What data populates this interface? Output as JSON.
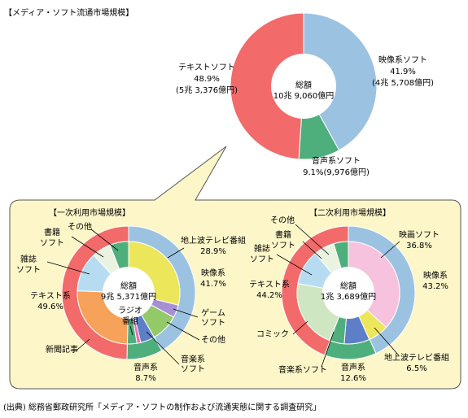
{
  "chart_data": [
    {
      "type": "pie",
      "title": "【メディア・ソフト流通市場規模】",
      "center_label": [
        "総額",
        "10兆 9,060億円"
      ],
      "slices": [
        {
          "name": "映像系ソフト",
          "value": 41.9,
          "pct": "41.9%",
          "amount": "(4兆 5,708億円)",
          "color": "#9cc2e1"
        },
        {
          "name": "音声系ソフト",
          "value": 9.1,
          "pct": "9.1%",
          "amount": "(9,976億円)",
          "color": "#4faf7c"
        },
        {
          "name": "テキストソフト",
          "value": 48.9,
          "pct": "48.9%",
          "amount": "(5兆 3,376億円)",
          "color": "#f26a6a"
        }
      ],
      "labels": {
        "video": [
          "映像系ソフト",
          "41.9%",
          "(4兆 5,708億円)"
        ],
        "audio": [
          "音声系ソフト",
          "9.1%(9,976億円)"
        ],
        "text": [
          "テキストソフト",
          "48.9%",
          "(5兆 3,376億円)"
        ]
      }
    },
    {
      "type": "pie",
      "title": "【一次利用市場規模】",
      "center_label": [
        "総額",
        "9兆 5,371億円"
      ],
      "outer": [
        {
          "name": "映像系",
          "value": 41.7,
          "color": "#9cc2e1"
        },
        {
          "name": "音声系",
          "value": 8.7,
          "color": "#4faf7c"
        },
        {
          "name": "テキスト系",
          "value": 49.6,
          "color": "#f26a6a"
        }
      ],
      "inner": [
        {
          "name": "地上波テレビ番組",
          "value": 28.9,
          "color": "#ece65a"
        },
        {
          "name": "ゲームソフト",
          "value": 4.0,
          "color": "#a78fd4"
        },
        {
          "name": "その他",
          "value": 8.8,
          "color": "#94c96a"
        },
        {
          "name": "音楽系ソフト",
          "value": 4.5,
          "color": "#5d7fc7"
        },
        {
          "name": "ラジオ番組",
          "value": 1.2,
          "color": "#f06aa8"
        },
        {
          "name": "その他",
          "value": 3.0,
          "color": "#4faf7c"
        },
        {
          "name": "新聞記事",
          "value": 25.2,
          "color": "#f6a25a"
        },
        {
          "name": "雑誌ソフト",
          "value": 12.5,
          "color": "#b7dcf2"
        },
        {
          "name": "書籍ソフト",
          "value": 6.0,
          "color": "#e9f3e0"
        },
        {
          "name": "その他",
          "value": 5.9,
          "color": "#4faf7c"
        }
      ],
      "labels": {
        "tv": [
          "地上波テレビ番組",
          "28.9%"
        ],
        "video": [
          "映像系",
          "41.7%"
        ],
        "game": [
          "ゲーム",
          "ソフト"
        ],
        "other_right": "その他",
        "music": [
          "音楽系",
          "ソフト"
        ],
        "audio": [
          "音声系",
          "8.7%"
        ],
        "radio": [
          "ラジオ",
          "番組"
        ],
        "text": [
          "テキスト系",
          "49.6%"
        ],
        "news": "新聞記事",
        "magazine": [
          "雑誌",
          "ソフト"
        ],
        "books": [
          "書籍",
          "ソフト"
        ],
        "other_top": "その他"
      }
    },
    {
      "type": "pie",
      "title": "【二次利用市場規模】",
      "center_label": [
        "総額",
        "1兆 3,689億円"
      ],
      "outer": [
        {
          "name": "映像系",
          "value": 43.2,
          "color": "#9cc2e1"
        },
        {
          "name": "音声系",
          "value": 12.6,
          "color": "#4faf7c"
        },
        {
          "name": "テキスト系",
          "value": 44.2,
          "color": "#f26a6a"
        }
      ],
      "inner": [
        {
          "name": "映画ソフト",
          "value": 36.8,
          "color": "#f7c2de"
        },
        {
          "name": "地上波テレビ番組",
          "value": 6.5,
          "color": "#ece65a"
        },
        {
          "name": "音楽系ソフト",
          "value": 8.0,
          "color": "#5d7fc7"
        },
        {
          "name": "その他",
          "value": 4.6,
          "color": "#4faf7c"
        },
        {
          "name": "コミック",
          "value": 22.0,
          "color": "#cfe6c2"
        },
        {
          "name": "雑誌ソフト",
          "value": 11.0,
          "color": "#b7dcf2"
        },
        {
          "name": "書籍ソフト",
          "value": 6.5,
          "color": "#e9f3e0"
        },
        {
          "name": "その他",
          "value": 4.6,
          "color": "#4faf7c"
        }
      ],
      "labels": {
        "movie": [
          "映画ソフト",
          "36.8%"
        ],
        "video": [
          "映像系",
          "43.2%"
        ],
        "tv": [
          "地上波テレビ番組",
          "6.5%"
        ],
        "audio": [
          "音声系",
          "12.6%"
        ],
        "music": "音楽系ソフト",
        "comic": "コミック",
        "text": [
          "テキスト系",
          "44.2%"
        ],
        "magazine": [
          "雑誌",
          "ソフト"
        ],
        "books": [
          "書籍",
          "ソフト"
        ],
        "other_top": "その他"
      }
    }
  ],
  "source": "(出典) 総務省郵政研究所「メディア・ソフトの制作および流通実態に関する調査研究」",
  "colors": {
    "panel_bg": "#fdf6c9",
    "panel_border": "#555555",
    "ring_stroke": "#ffffff"
  }
}
